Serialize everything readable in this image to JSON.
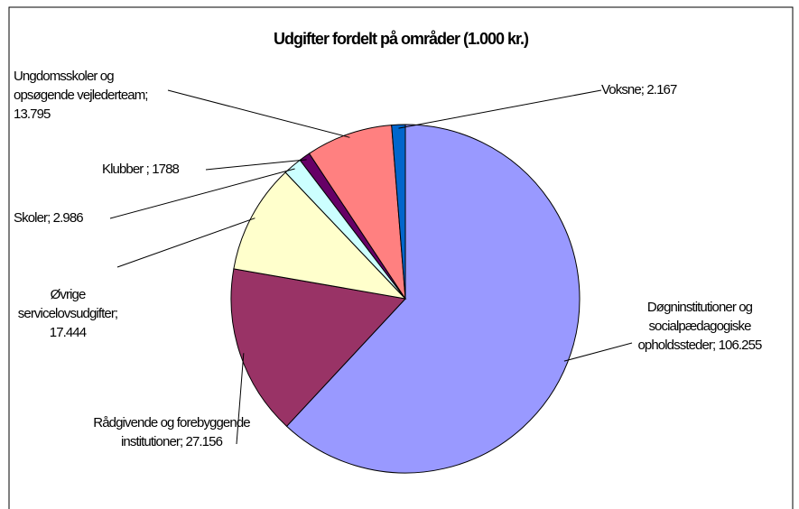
{
  "chart_data": {
    "type": "pie",
    "title": "Udgifter fordelt på områder (1.000 kr.)",
    "categories": [
      "Døgninstitutioner og socialpædagogiske opholdssteder;",
      "Rådgivende og forebyggende institutioner;",
      "Øvrige servicelovsudgifter;",
      "Skoler;",
      "Klubber ;",
      "Ungdomsskoler og opsøgende vejlederteam;",
      "Voksne;"
    ],
    "values": [
      106255,
      27156,
      17444,
      2986,
      1788,
      13795,
      2167
    ],
    "value_labels": [
      "106.255",
      "27.156",
      "17.444",
      "2.986",
      "1788",
      "13.795",
      "2.167"
    ],
    "colors": [
      "#9999ff",
      "#993366",
      "#ffffcc",
      "#ccffff",
      "#660066",
      "#ff8080",
      "#0066cc"
    ]
  }
}
